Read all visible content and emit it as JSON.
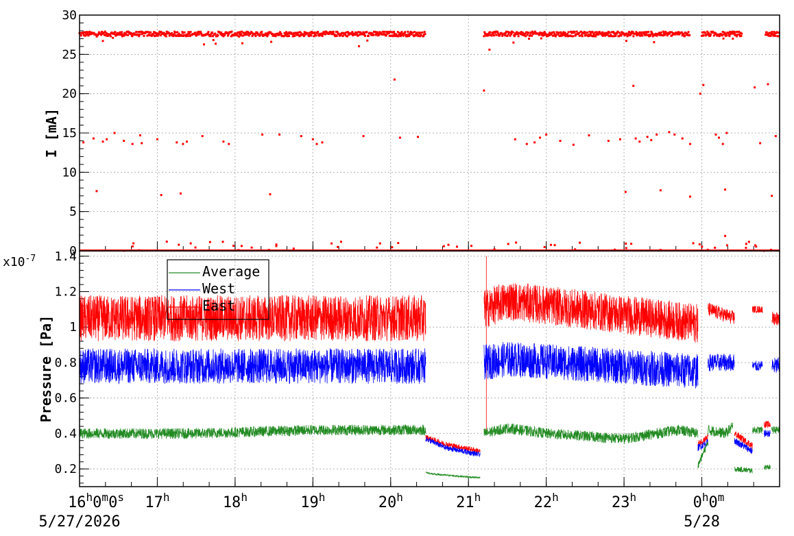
{
  "chart_data": [
    {
      "type": "scatter",
      "ylabel": "I [mA]",
      "ylim": [
        0,
        30
      ],
      "yticks": [
        0,
        5,
        10,
        15,
        20,
        25,
        30
      ],
      "grid": true,
      "colors": {
        "points": "#ff0000"
      },
      "series": [
        {
          "color": "#ff0000",
          "note_main_level_mA": 27.6,
          "main_segments_hours": [
            [
              0.0,
              4.45
            ],
            [
              5.2,
              7.85
            ],
            [
              8.0,
              8.52
            ],
            [
              8.82,
              9.0
            ]
          ],
          "zero_segments_hours": [
            [
              0.0,
              9.0
            ]
          ],
          "stray_points": [
            [
              0.05,
              13.8
            ],
            [
              0.18,
              14.3
            ],
            [
              0.22,
              7.6
            ],
            [
              0.3,
              13.9
            ],
            [
              0.35,
              14.2
            ],
            [
              0.45,
              15.0
            ],
            [
              0.57,
              14.0
            ],
            [
              0.68,
              13.6
            ],
            [
              0.78,
              14.7
            ],
            [
              0.8,
              13.7
            ],
            [
              1.0,
              14.2
            ],
            [
              1.05,
              7.1
            ],
            [
              1.25,
              13.8
            ],
            [
              1.3,
              7.3
            ],
            [
              1.33,
              13.6
            ],
            [
              1.38,
              13.9
            ],
            [
              1.58,
              14.6
            ],
            [
              1.85,
              13.9
            ],
            [
              1.92,
              13.6
            ],
            [
              2.35,
              14.8
            ],
            [
              2.45,
              7.2
            ],
            [
              2.57,
              14.8
            ],
            [
              2.85,
              14.6
            ],
            [
              3.0,
              14.2
            ],
            [
              3.05,
              13.6
            ],
            [
              3.12,
              13.8
            ],
            [
              3.65,
              14.6
            ],
            [
              4.05,
              21.8
            ],
            [
              4.12,
              14.4
            ],
            [
              4.35,
              14.5
            ],
            [
              5.2,
              20.4
            ],
            [
              5.27,
              25.6
            ],
            [
              5.6,
              14.2
            ],
            [
              5.75,
              13.6
            ],
            [
              5.85,
              13.8
            ],
            [
              5.92,
              14.4
            ],
            [
              6.0,
              14.8
            ],
            [
              6.18,
              14.0
            ],
            [
              6.35,
              13.5
            ],
            [
              6.55,
              14.7
            ],
            [
              6.8,
              14.0
            ],
            [
              6.95,
              14.2
            ],
            [
              7.02,
              7.5
            ],
            [
              7.12,
              21.0
            ],
            [
              7.15,
              14.3
            ],
            [
              7.2,
              13.9
            ],
            [
              7.3,
              14.5
            ],
            [
              7.35,
              14.1
            ],
            [
              7.42,
              14.8
            ],
            [
              7.47,
              7.7
            ],
            [
              7.58,
              15.1
            ],
            [
              7.65,
              14.8
            ],
            [
              7.75,
              14.3
            ],
            [
              7.85,
              13.6
            ],
            [
              7.85,
              6.9
            ],
            [
              7.98,
              20.0
            ],
            [
              8.02,
              21.1
            ],
            [
              8.18,
              14.8
            ],
            [
              8.22,
              14.4
            ],
            [
              8.27,
              13.6
            ],
            [
              8.32,
              15.0
            ],
            [
              8.3,
              7.8
            ],
            [
              8.3,
              1.9
            ],
            [
              8.68,
              20.8
            ],
            [
              8.75,
              13.7
            ],
            [
              8.85,
              21.2
            ],
            [
              8.9,
              7.0
            ],
            [
              8.95,
              14.6
            ]
          ]
        }
      ]
    },
    {
      "type": "line",
      "ylabel": "Pressure [Pa]",
      "y_multiplier": "x10",
      "y_multiplier_exponent": "-7",
      "ylim": [
        0.1,
        1.43
      ],
      "yticks": [
        "0.2",
        "0.4",
        "0.6",
        "0.8",
        "1",
        "1.2",
        "1.4"
      ],
      "grid": true,
      "legend": "top-left",
      "series": [
        {
          "name": "Average",
          "color": "#228b22"
        },
        {
          "name": "West",
          "color": "#0000ff"
        },
        {
          "name": "East",
          "color": "#ff0000"
        }
      ],
      "profiles": [
        {
          "name": "Average",
          "segments": [
            {
              "x": [
                0.0,
                1.5,
                3.0,
                3.5,
                4.45
              ],
              "mid": [
                0.4,
                0.4,
                0.42,
                0.42,
                0.42
              ],
              "noise": 0.03
            },
            {
              "x": [
                4.45,
                4.55,
                5.15
              ],
              "mid": [
                0.18,
                0.17,
                0.15
              ],
              "noise": 0.005
            },
            {
              "x": [
                5.2,
                5.5,
                6.0,
                7.0,
                7.7,
                7.95
              ],
              "mid": [
                0.4,
                0.43,
                0.4,
                0.37,
                0.42,
                0.4
              ],
              "noise": 0.03
            },
            {
              "x": [
                7.95,
                8.08
              ],
              "mid": [
                0.22,
                0.35
              ],
              "noise": 0.02
            },
            {
              "x": [
                8.08,
                8.3,
                8.4
              ],
              "mid": [
                0.42,
                0.4,
                0.44
              ],
              "noise": 0.03
            },
            {
              "x": [
                8.42,
                8.65
              ],
              "mid": [
                0.2,
                0.19
              ],
              "noise": 0.015
            },
            {
              "x": [
                8.65,
                8.78
              ],
              "mid": [
                0.42,
                0.42
              ],
              "noise": 0.02
            },
            {
              "x": [
                8.8,
                8.88
              ],
              "mid": [
                0.21,
                0.21
              ],
              "noise": 0.015
            },
            {
              "x": [
                8.9,
                9.0
              ],
              "mid": [
                0.42,
                0.42
              ],
              "noise": 0.02
            }
          ]
        },
        {
          "name": "West",
          "segments": [
            {
              "x": [
                0.0,
                4.45
              ],
              "mid": [
                0.78,
                0.78
              ],
              "noise": 0.1
            },
            {
              "x": [
                4.45,
                4.7,
                5.15
              ],
              "mid": [
                0.37,
                0.32,
                0.28
              ],
              "noise": 0.015
            },
            {
              "x": [
                5.2,
                5.5,
                7.95
              ],
              "mid": [
                0.8,
                0.82,
                0.75
              ],
              "noise": 0.1
            },
            {
              "x": [
                7.95,
                8.08
              ],
              "mid": [
                0.32,
                0.35
              ],
              "noise": 0.02
            },
            {
              "x": [
                8.08,
                8.42
              ],
              "mid": [
                0.8,
                0.8
              ],
              "noise": 0.05
            },
            {
              "x": [
                8.42,
                8.65
              ],
              "mid": [
                0.36,
                0.3
              ],
              "noise": 0.02
            },
            {
              "x": [
                8.65,
                8.78
              ],
              "mid": [
                0.78,
                0.78
              ],
              "noise": 0.03
            },
            {
              "x": [
                8.8,
                8.88
              ],
              "mid": [
                0.4,
                0.4
              ],
              "noise": 0.02
            },
            {
              "x": [
                8.9,
                9.0
              ],
              "mid": [
                0.78,
                0.78
              ],
              "noise": 0.05
            }
          ]
        },
        {
          "name": "East",
          "segments": [
            {
              "x": [
                0.0,
                4.45
              ],
              "mid": [
                1.05,
                1.05
              ],
              "noise": 0.13
            },
            {
              "x": [
                4.45,
                4.7,
                5.15
              ],
              "mid": [
                0.38,
                0.34,
                0.3
              ],
              "noise": 0.015
            },
            {
              "x": [
                5.2,
                5.5,
                7.95
              ],
              "mid": [
                1.1,
                1.15,
                1.02
              ],
              "noise": 0.11
            },
            {
              "x": [
                7.95,
                8.08
              ],
              "mid": [
                0.34,
                0.38
              ],
              "noise": 0.02
            },
            {
              "x": [
                8.08,
                8.42
              ],
              "mid": [
                1.1,
                1.05
              ],
              "noise": 0.04
            },
            {
              "x": [
                8.42,
                8.65
              ],
              "mid": [
                0.4,
                0.33
              ],
              "noise": 0.02
            },
            {
              "x": [
                8.65,
                8.78
              ],
              "mid": [
                1.1,
                1.1
              ],
              "noise": 0.02
            },
            {
              "x": [
                8.8,
                8.88
              ],
              "mid": [
                0.45,
                0.45
              ],
              "noise": 0.02
            },
            {
              "x": [
                8.9,
                9.0
              ],
              "mid": [
                1.05,
                1.05
              ],
              "noise": 0.04
            }
          ],
          "spikes": [
            {
              "x": 5.23,
              "y": 1.4
            }
          ]
        }
      ]
    }
  ],
  "time_axis": {
    "range_hours": [
      0,
      9.0
    ],
    "ticks": [
      {
        "hour": 0,
        "label": "16",
        "superscript": "h",
        "extra": "0",
        "extra_sup": "m",
        "extra2": "0",
        "extra2_sup": "s"
      },
      {
        "hour": 1,
        "label": "17",
        "superscript": "h"
      },
      {
        "hour": 2,
        "label": "18",
        "superscript": "h"
      },
      {
        "hour": 3,
        "label": "19",
        "superscript": "h"
      },
      {
        "hour": 4,
        "label": "20",
        "superscript": "h"
      },
      {
        "hour": 5,
        "label": "21",
        "superscript": "h"
      },
      {
        "hour": 6,
        "label": "22",
        "superscript": "h"
      },
      {
        "hour": 7,
        "label": "23",
        "superscript": "h"
      },
      {
        "hour": 8,
        "label": "0",
        "superscript": "h",
        "extra": "0",
        "extra_sup": "m"
      }
    ],
    "date_labels": [
      {
        "hour": 0,
        "text": "5/27/2026"
      },
      {
        "hour": 8,
        "text": "5/28"
      }
    ]
  }
}
